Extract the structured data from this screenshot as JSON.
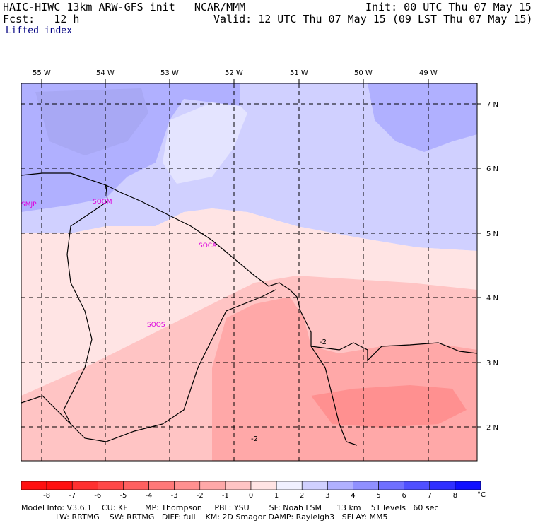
{
  "header": {
    "title": "HAIC-HIWC 13km ARW-GFS init   NCAR/MMM",
    "init": "Init: 00 UTC Thu 07 May 15",
    "fcst": "Fcst:   12 h",
    "valid": "Valid: 12 UTC Thu 07 May 15 (09 LST Thu 07 May 15)",
    "field": "Lifted index"
  },
  "map": {
    "lon_labels": [
      "55 W",
      "54 W",
      "53 W",
      "52 W",
      "51 W",
      "50 W",
      "49 W"
    ],
    "lat_labels": [
      "7 N",
      "6 N",
      "5 N",
      "4 N",
      "3 N",
      "2 N"
    ],
    "stations": [
      "SMJP",
      "SOGM",
      "SOCA",
      "SOOS"
    ],
    "contour_labels": [
      "-2",
      "-2"
    ]
  },
  "colorbar": {
    "ticks": [
      "-8",
      "-7",
      "-6",
      "-5",
      "-4",
      "-3",
      "-2",
      "-1",
      "0",
      "1",
      "2",
      "3",
      "4",
      "5",
      "6",
      "7",
      "8"
    ],
    "unit": "°C",
    "colors": [
      "#ff1010",
      "#ff3030",
      "#ff4848",
      "#ff6060",
      "#ff7878",
      "#ff9090",
      "#ffa8a8",
      "#ffc4c4",
      "#ffe4e4",
      "#f0f0ff",
      "#d0d0ff",
      "#b0b0ff",
      "#9090ff",
      "#7070ff",
      "#5050ff",
      "#3030ff",
      "#1010ff"
    ]
  },
  "footer": {
    "line1": "Model Info: V3.6.1    CU: KF       MP: Thompson     PBL: YSU        SF: Noah LSM      13 km    51 levels   60 sec",
    "line2": "              LW: RRTMG    SW: RRTMG   DIFF: full    KM: 2D Smagor DAMP: Rayleigh3   SFLAY: MM5"
  }
}
